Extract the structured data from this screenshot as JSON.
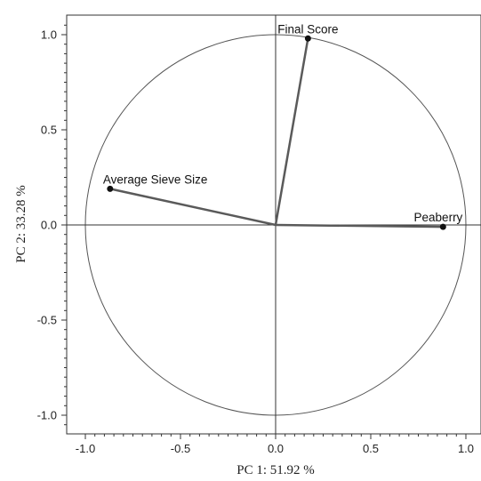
{
  "chart_data": {
    "type": "scatter",
    "subtype": "pca-correlation-circle",
    "title": "",
    "xlabel": "PC 1: 51.92 %",
    "ylabel": "PC 2: 33.28 %",
    "xlim": [
      -1.1,
      1.05
    ],
    "ylim": [
      -1.1,
      1.1
    ],
    "x_ticks": [
      -1.0,
      -0.5,
      0.0,
      0.5,
      1.0
    ],
    "x_tick_labels": [
      "-1.0",
      "-0.5",
      "0.0",
      "0.5",
      "1.0"
    ],
    "y_ticks": [
      -1.0,
      -0.5,
      0.0,
      0.5,
      1.0
    ],
    "y_tick_labels": [
      "-1.0",
      "-0.5",
      "0.0",
      "0.5",
      "1.0"
    ],
    "unit_circle_radius": 1.0,
    "grid": false,
    "variables": [
      {
        "label": "Final Score",
        "x": 0.17,
        "y": 0.98,
        "label_anchor": "middle"
      },
      {
        "label": "Average Sieve Size",
        "x": -0.87,
        "y": 0.19,
        "label_anchor": "start"
      },
      {
        "label": "Peaberry",
        "x": 0.88,
        "y": -0.01,
        "label_anchor": "end"
      }
    ],
    "colors": {
      "vector": "#5a5a5a",
      "point": "#111111",
      "circle": "#555555",
      "axis": "#333333"
    }
  }
}
